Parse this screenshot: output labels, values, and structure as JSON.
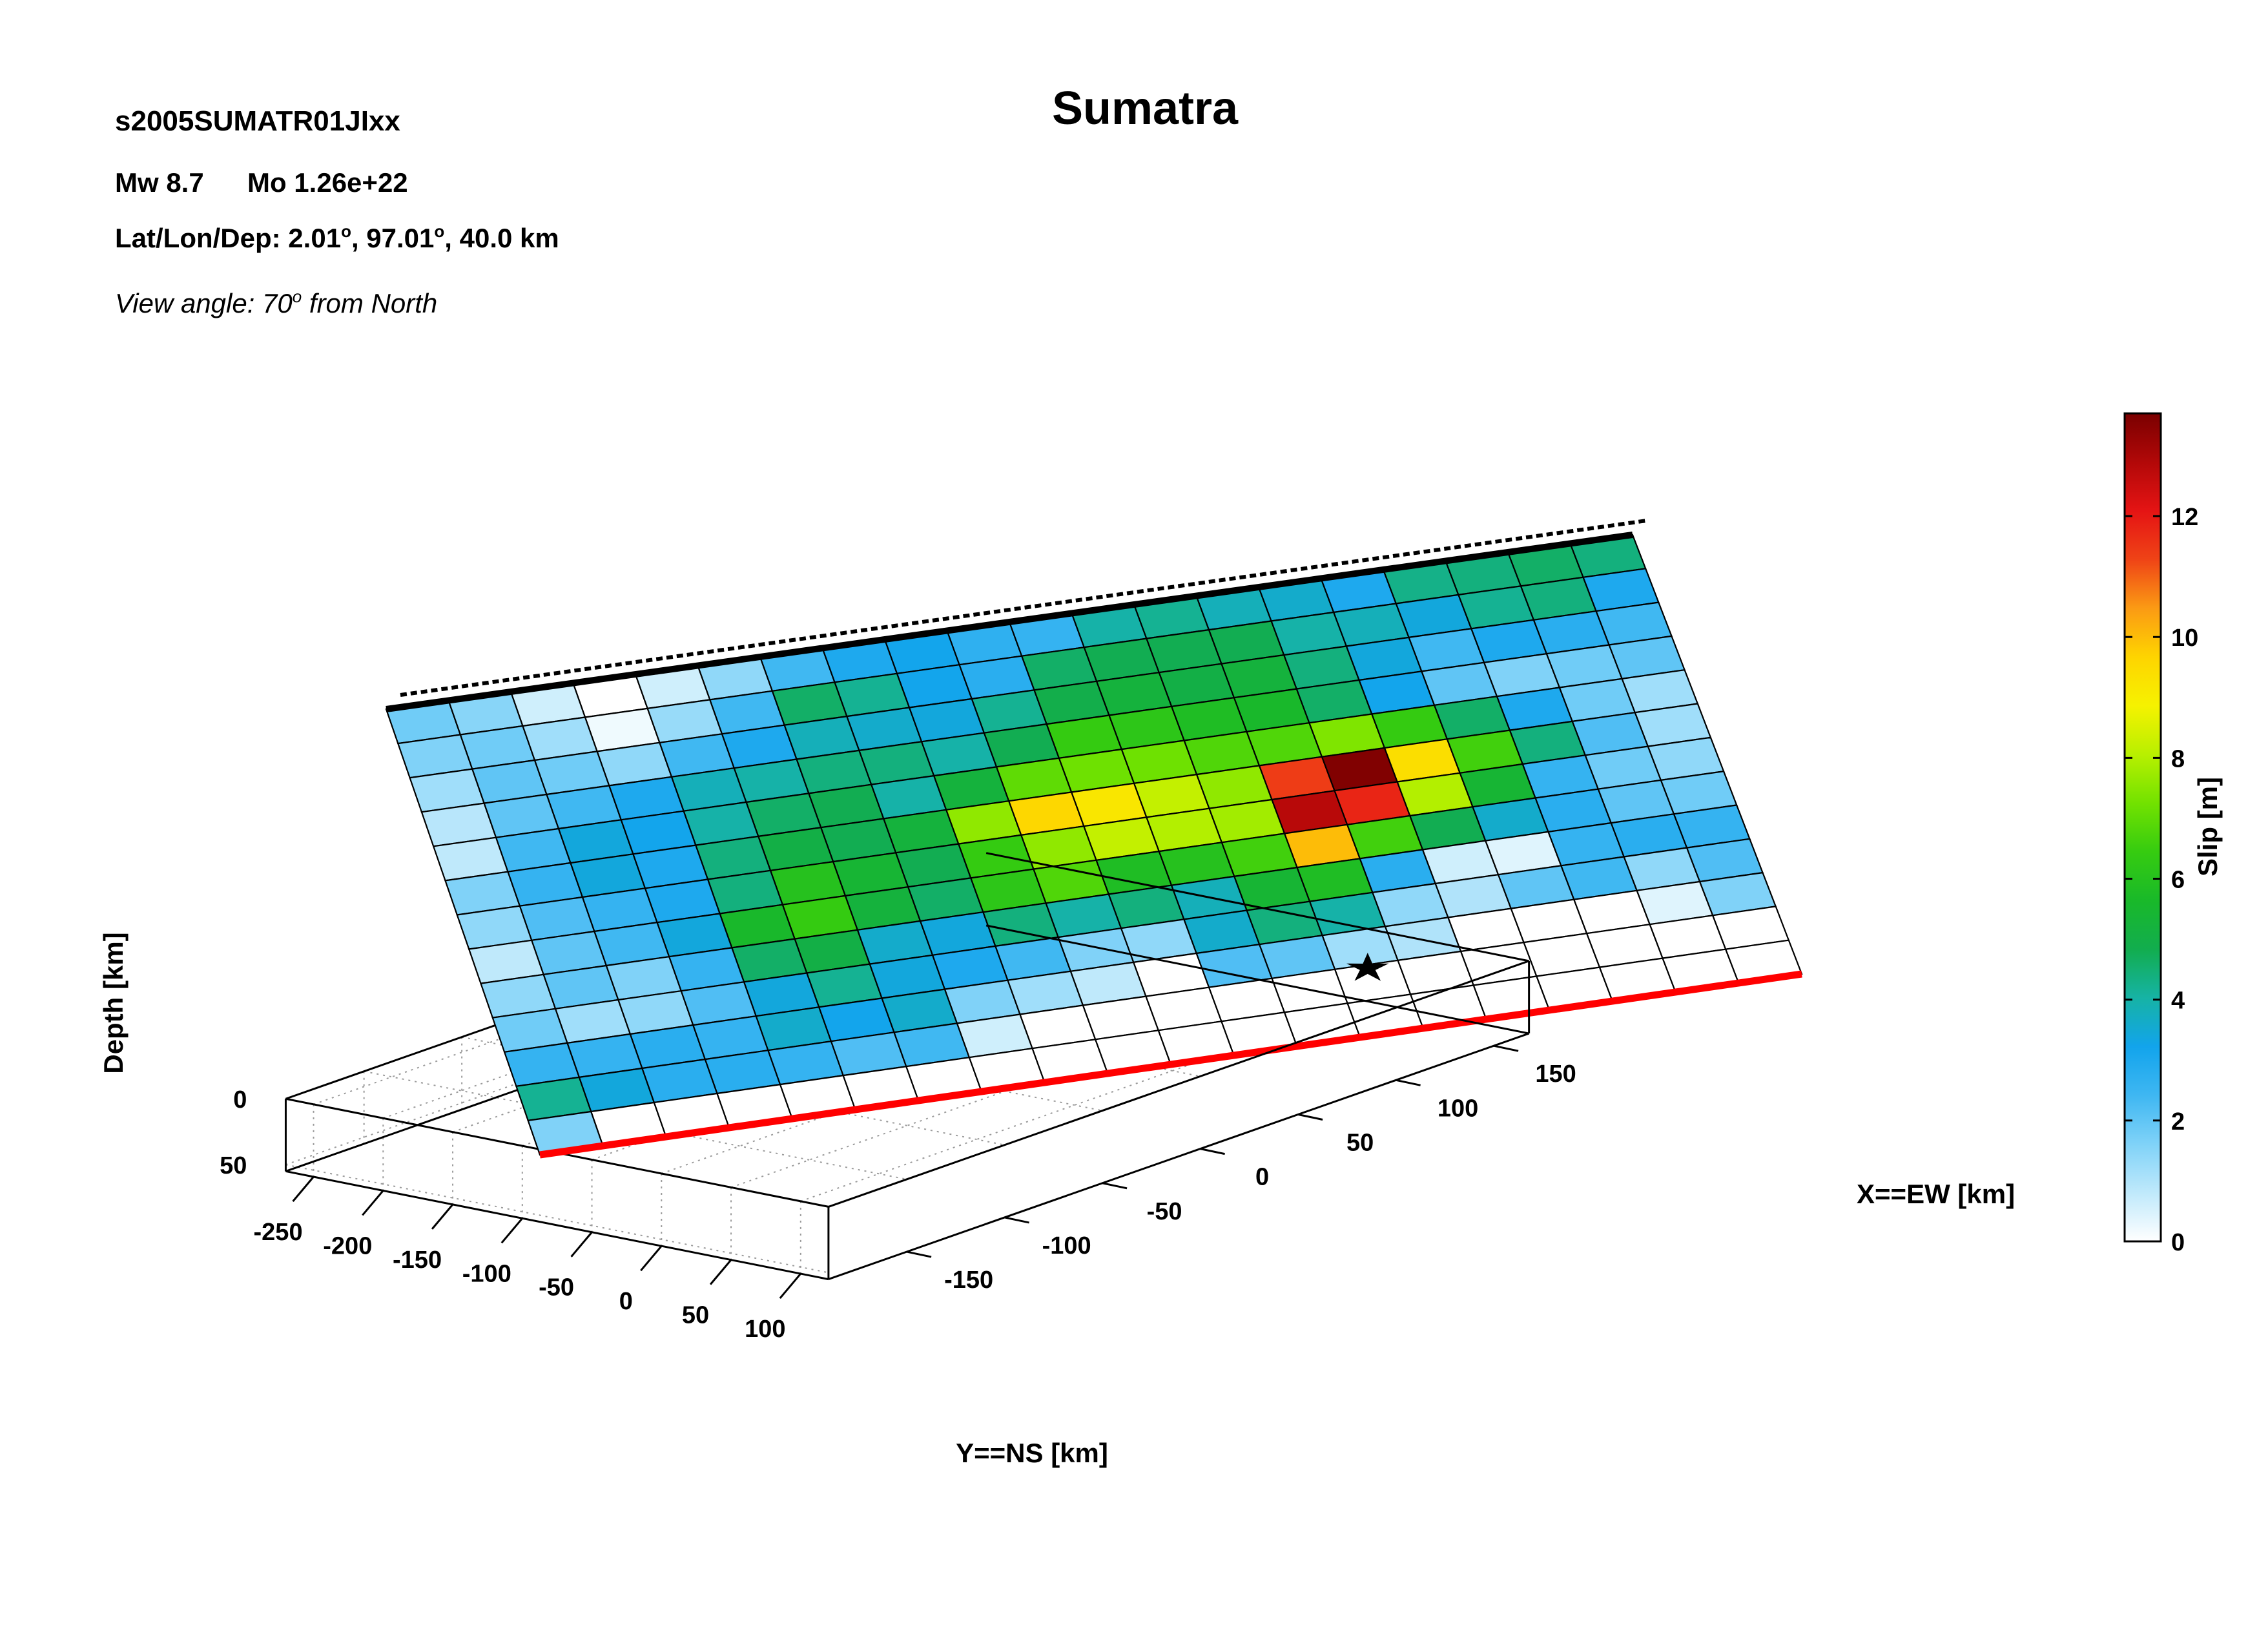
{
  "header": {
    "event_id": "s2005SUMATR01JIxx",
    "mw": "Mw 8.7",
    "mo": "Mo 1.26e+22",
    "latlondep_prefix": "Lat/Lon/Dep: 2.01",
    "latlondep_mid": ", 97.01",
    "latlondep_end": ", 40.0 km",
    "degree_mark": "o",
    "view_prefix": "View angle:  70",
    "view_sup": "o",
    "view_suffix": " from North"
  },
  "chart_data": {
    "type": "heatmap",
    "title": "Sumatra",
    "xlabel": "X==EW [km]",
    "ylabel": "Y==NS [km]",
    "zlabel": "Depth [km]",
    "colorbar_label": "Slip [m]",
    "view_angle_deg": 70,
    "x_ticks": [
      -150,
      -100,
      -50,
      0,
      50,
      100,
      150
    ],
    "y_ticks": [
      -250,
      -200,
      -150,
      -100,
      -50,
      0,
      50,
      100
    ],
    "z_ticks": [
      0,
      50
    ],
    "colorbar_ticks": [
      0,
      2,
      4,
      6,
      8,
      10,
      12
    ],
    "colorbar_range": [
      0,
      13.7
    ],
    "colormap": [
      "#ffffff",
      "#bfe9fb",
      "#7fd2f8",
      "#3fb7f2",
      "#12a4ec",
      "#16b3a5",
      "#12ad4e",
      "#19b929",
      "#36cc10",
      "#72e200",
      "#b8f000",
      "#f6f200",
      "#fed400",
      "#fb9a14",
      "#ef4316",
      "#e51414",
      "#b20808",
      "#7a0000"
    ],
    "grid": true,
    "top_edge_color": "#000000",
    "bottom_edge_color": "#ff0000",
    "hypocenter_marker": "star",
    "hypocenter_cell": [
      11,
      13
    ],
    "slip_rows": 13,
    "slip_cols": 20,
    "slip_m": [
      [
        1.8,
        1.5,
        0.6,
        0.0,
        0.6,
        1.4,
        2.4,
        3.0,
        3.2,
        2.7,
        2.6,
        4.0,
        4.2,
        3.8,
        3.6,
        3.0,
        4.3,
        4.4,
        4.6,
        4.4
      ],
      [
        1.6,
        1.8,
        1.2,
        0.2,
        1.3,
        2.4,
        4.6,
        4.2,
        3.2,
        2.8,
        4.6,
        4.8,
        4.8,
        4.8,
        4.0,
        3.8,
        3.4,
        4.2,
        4.4,
        3.0
      ],
      [
        1.2,
        2.0,
        1.8,
        1.4,
        2.4,
        3.0,
        3.8,
        3.6,
        3.4,
        4.2,
        4.9,
        5.2,
        5.0,
        5.2,
        4.4,
        3.4,
        2.4,
        3.0,
        2.8,
        2.4
      ],
      [
        0.9,
        2.0,
        2.4,
        3.0,
        3.8,
        4.0,
        4.4,
        4.4,
        4.0,
        4.8,
        6.4,
        6.2,
        5.8,
        5.6,
        4.6,
        3.2,
        2.0,
        1.6,
        1.8,
        2.0
      ],
      [
        0.8,
        2.4,
        3.4,
        3.2,
        4.0,
        4.6,
        4.8,
        4.0,
        5.2,
        7.0,
        7.2,
        7.2,
        6.8,
        6.8,
        7.4,
        6.4,
        4.6,
        3.0,
        1.8,
        1.2
      ],
      [
        1.6,
        2.6,
        3.4,
        3.0,
        4.4,
        5.0,
        4.8,
        5.2,
        7.6,
        9.6,
        9.2,
        8.2,
        7.6,
        11.4,
        13.6,
        9.4,
        6.6,
        4.4,
        2.2,
        1.2
      ],
      [
        1.4,
        2.2,
        2.6,
        3.0,
        4.4,
        6.0,
        5.4,
        4.8,
        6.4,
        7.6,
        8.2,
        8.0,
        7.8,
        12.8,
        11.8,
        8.0,
        5.4,
        2.6,
        1.8,
        1.4
      ],
      [
        0.8,
        2.0,
        2.4,
        3.4,
        5.6,
        6.4,
        5.2,
        4.6,
        6.2,
        6.8,
        5.8,
        6.0,
        6.6,
        10.0,
        6.6,
        4.8,
        3.6,
        2.8,
        2.0,
        1.8
      ],
      [
        1.4,
        2.0,
        1.6,
        2.6,
        4.6,
        5.0,
        3.6,
        3.4,
        4.4,
        4.0,
        4.4,
        3.8,
        5.4,
        5.8,
        2.8,
        0.6,
        0.4,
        2.6,
        2.8,
        2.6
      ],
      [
        1.8,
        1.2,
        1.4,
        2.2,
        3.4,
        4.2,
        3.4,
        3.0,
        2.4,
        1.6,
        1.4,
        3.6,
        4.4,
        4.0,
        1.4,
        1.0,
        2.0,
        2.4,
        1.4,
        2.2
      ],
      [
        2.6,
        2.6,
        2.8,
        2.6,
        3.6,
        3.2,
        3.6,
        1.6,
        1.2,
        0.8,
        0.0,
        2.2,
        2.0,
        1.2,
        1.0,
        0.0,
        0.0,
        0.0,
        0.4,
        1.6
      ],
      [
        4.2,
        3.4,
        2.8,
        2.8,
        2.6,
        2.2,
        2.4,
        0.6,
        0.0,
        0.0,
        0.0,
        0.0,
        0.0,
        0.0,
        0.0,
        0.0,
        0.0,
        0.0,
        0.0,
        0.0
      ],
      [
        1.6,
        0.0,
        0.0,
        0.0,
        0.0,
        0.0,
        0.0,
        0.0,
        0.0,
        0.0,
        0.0,
        0.0,
        0.0,
        0.0,
        0.0,
        0.0,
        0.0,
        0.0,
        0.0,
        0.0
      ]
    ]
  }
}
